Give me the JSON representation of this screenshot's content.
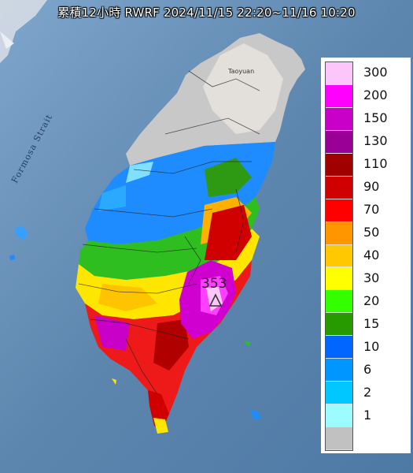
{
  "title": "累積12小時 RWRF 2024/11/15 22:20~11/16 10:20",
  "map": {
    "strait_label": "Formosa Strait",
    "city_label": "Taoyuan",
    "max_value": "353"
  },
  "legend": {
    "items": [
      {
        "label": "300",
        "color": "#fdc6fb"
      },
      {
        "label": "200",
        "color": "#ff00ff"
      },
      {
        "label": "150",
        "color": "#c800c8"
      },
      {
        "label": "130",
        "color": "#9b0096"
      },
      {
        "label": "110",
        "color": "#a00000"
      },
      {
        "label": "90",
        "color": "#d00000"
      },
      {
        "label": "70",
        "color": "#ff0000"
      },
      {
        "label": "50",
        "color": "#ff9600"
      },
      {
        "label": "40",
        "color": "#ffc800"
      },
      {
        "label": "30",
        "color": "#ffff00"
      },
      {
        "label": "20",
        "color": "#33ff00"
      },
      {
        "label": "15",
        "color": "#279a00"
      },
      {
        "label": "10",
        "color": "#0066ff"
      },
      {
        "label": "6",
        "color": "#0096ff"
      },
      {
        "label": "2",
        "color": "#00c8ff"
      },
      {
        "label": "1",
        "color": "#9cfcff"
      },
      {
        "label": "",
        "color": "#c1c1c1"
      }
    ]
  },
  "colors": {
    "sea": "#5f86ad",
    "land_gray": "#c4c4c4",
    "land_white": "#ebe8e3"
  }
}
